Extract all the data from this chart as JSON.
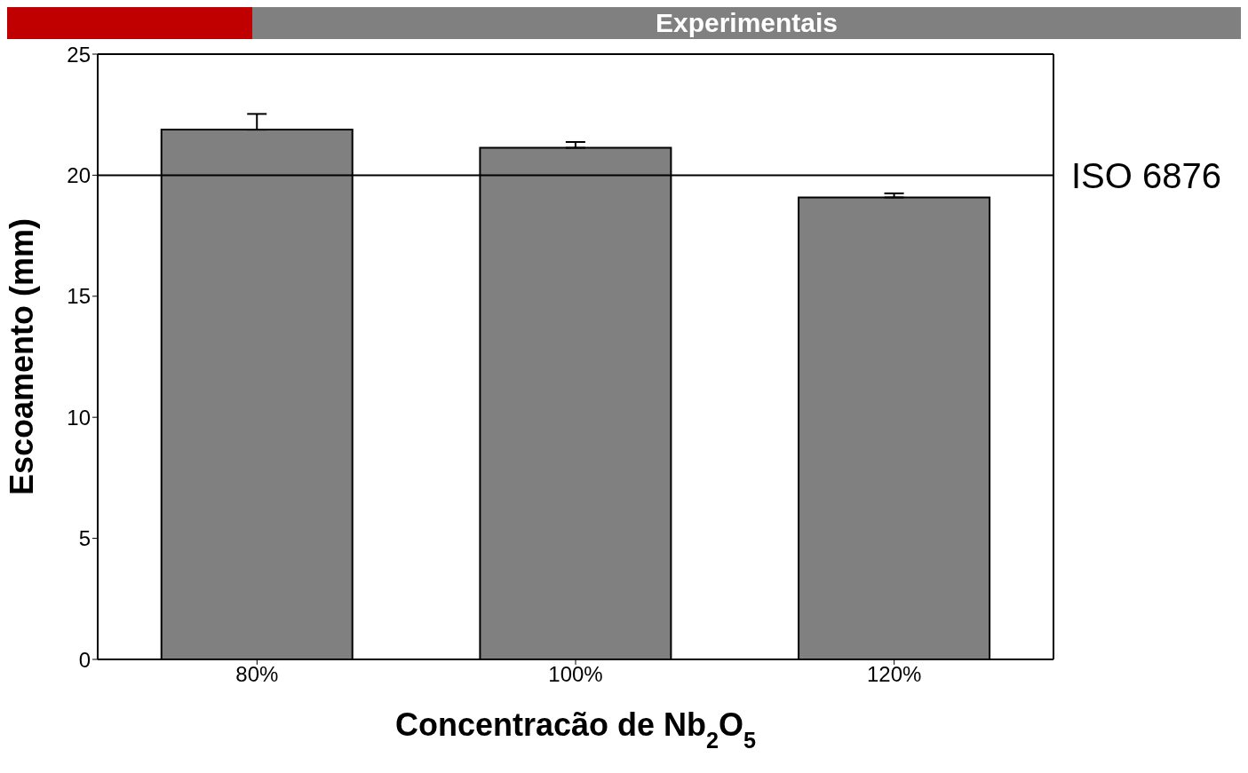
{
  "chart_data": {
    "type": "bar",
    "title": "Experimentais",
    "xlabel": "Concentracão de Nb$_{2}$O$_{5}$",
    "ylabel": "Escoamento (mm)",
    "categories": [
      "80%",
      "100%",
      "120%"
    ],
    "values": [
      21.88,
      21.13,
      19.08
    ],
    "errors": [
      [
        21.88,
        22.53
      ],
      [
        21.13,
        21.37
      ],
      [
        19.08,
        19.25
      ]
    ],
    "color": "#808080",
    "ylim": [
      0,
      25
    ],
    "yticks": [
      0,
      5,
      10,
      15,
      20,
      25
    ],
    "ref_lines": [
      {
        "axis": "y",
        "value": 20,
        "label": "ISO 6876",
        "color": "#000000"
      }
    ]
  }
}
